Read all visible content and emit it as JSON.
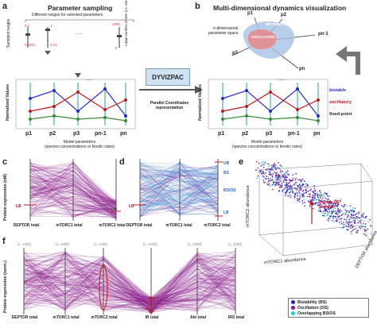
{
  "panels": {
    "a": {
      "letter": "a",
      "title": "Parameter sampling",
      "ranges_caption": "Different ranges for selected parameters",
      "sampled_ranges_label": "Sampled ranges",
      "sets_label": "Large number of sets (i.e. tens of 000s)",
      "range_ticks": [
        "0.1",
        "0.0001",
        "1",
        "0.01",
        "1000",
        "0"
      ],
      "dots": "......",
      "ylabel": "Normalized Values",
      "params": [
        "p1",
        "p2",
        "p3",
        "pn-1",
        "pn"
      ],
      "param_dots": "......",
      "xcaption_1": "Model parameters",
      "xcaption_2": "(species concentrations or kinetic rates)"
    },
    "center": {
      "box_label": "DYVIZPAC",
      "caption_1": "Parallel Coordinates",
      "caption_2": "representation"
    },
    "b": {
      "letter": "b",
      "title": "Multi-dimensional dynamics visualization",
      "space_label_1": "n-dimensional",
      "space_label_2": "parameter space",
      "axis_labels": [
        "p1",
        "p2",
        "p3",
        "pn-1",
        "pn"
      ],
      "region_labels": [
        "BISTABILITY",
        "OSCILLATION"
      ],
      "ylabel": "Normalized Values",
      "params": [
        "p1",
        "p2",
        "p3",
        "pn-1",
        "pn"
      ],
      "param_dots": "......",
      "xcaption_1": "Model parameters",
      "xcaption_2": "(species concentrations or kinetic rates)",
      "legend": [
        {
          "label": "bistable",
          "color": "#2a2ad0"
        },
        {
          "label": "oscillatory",
          "color": "#c0181e"
        },
        {
          "label": "fixed-point",
          "color": "#222222"
        }
      ]
    },
    "c": {
      "letter": "c",
      "ylabel": "Protein expression (nM)",
      "axes": [
        "DEPTOR total",
        "mTORC1 total",
        "mTORC2 total"
      ],
      "lb": "LB",
      "ub": "UB"
    },
    "d": {
      "letter": "d",
      "axes": [
        "DEPTOR total",
        "mTORC1 total",
        "mTORC2 total"
      ],
      "lb": "LB",
      "labels": [
        "UB",
        "BS",
        "BS/OS",
        "LB"
      ]
    },
    "e": {
      "letter": "e",
      "annotation_1": "reduce OS",
      "annotation_2": "and BS",
      "z_label": "mTORC2 abundance",
      "x_label": "mTORC1 abundance",
      "y_label": "DEPTOR abundance",
      "legend": [
        {
          "label": "Bistability (BS)",
          "color": "#3a1ab0"
        },
        {
          "label": "Oscillation (OS)",
          "color": "#8a108a"
        },
        {
          "label": "Overlapping BS/OS",
          "color": "#18d0d8"
        }
      ]
    },
    "f": {
      "letter": "f",
      "ylabel": "Protein expression (norm.)",
      "range_tag": "[1, 1000]",
      "axes": [
        "DEPTOR total",
        "mTORC1 total",
        "mTORC2 total",
        "IR total",
        "Akt total",
        "IRS total"
      ]
    }
  },
  "colors": {
    "purple": "#8a1a8a",
    "cyan": "#20b8e0",
    "red": "#d0202a",
    "box_fill": "#cfe3f3"
  }
}
